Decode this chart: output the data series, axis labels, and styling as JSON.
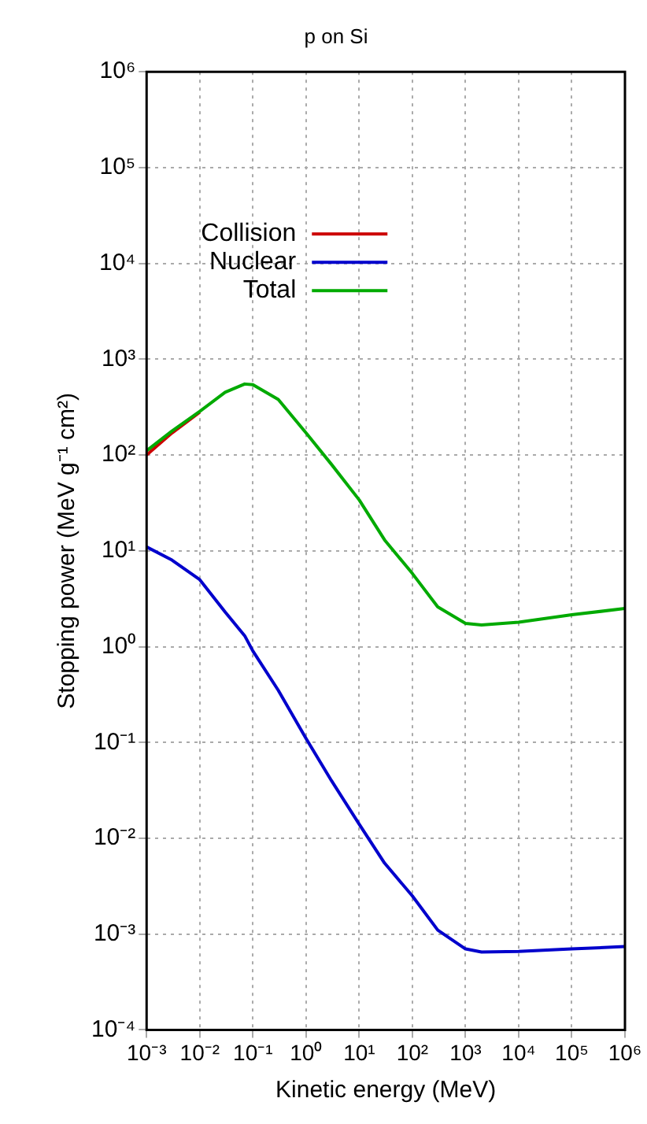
{
  "chart_data": {
    "type": "line",
    "title": "p on Si",
    "xlabel": "Kinetic energy (MeV)",
    "ylabel": "Stopping power (MeV g⁻¹ cm²)",
    "x": [
      0.001,
      0.003,
      0.01,
      0.03,
      0.07,
      0.1,
      0.3,
      1,
      3,
      10,
      30,
      100,
      300,
      1000,
      2000,
      10000,
      100000,
      1000000
    ],
    "series": [
      {
        "name": "Collision",
        "color": "#cc0000",
        "values": [
          100,
          170,
          280,
          null,
          null,
          null,
          null,
          null,
          null,
          null,
          null,
          null,
          null,
          null,
          null,
          null,
          null,
          null
        ]
      },
      {
        "name": "Nuclear",
        "color": "#0000cc",
        "values": [
          11,
          8,
          5,
          2.3,
          1.3,
          0.9,
          0.35,
          0.11,
          0.04,
          0.014,
          0.0055,
          0.0025,
          0.0011,
          0.0007,
          0.00065,
          0.00066,
          0.0007,
          0.00074
        ]
      },
      {
        "name": "Total",
        "color": "#00aa00",
        "values": [
          111,
          178,
          285,
          452,
          551,
          541,
          380,
          170,
          80,
          34,
          13,
          5.8,
          2.6,
          1.75,
          1.68,
          1.8,
          2.15,
          2.5
        ]
      }
    ],
    "xlim": [
      0.001,
      1000000
    ],
    "ylim": [
      0.0001,
      1000000
    ],
    "xticks": [
      {
        "value": 0.001,
        "label": "10⁻³"
      },
      {
        "value": 0.01,
        "label": "10⁻²"
      },
      {
        "value": 0.1,
        "label": "10⁻¹"
      },
      {
        "value": 1,
        "label": "10⁰"
      },
      {
        "value": 10,
        "label": "10¹"
      },
      {
        "value": 100,
        "label": "10²"
      },
      {
        "value": 1000,
        "label": "10³"
      },
      {
        "value": 10000,
        "label": "10⁴"
      },
      {
        "value": 100000,
        "label": "10⁵"
      },
      {
        "value": 1000000,
        "label": "10⁶"
      }
    ],
    "yticks": [
      {
        "value": 0.0001,
        "label": "10⁻⁴"
      },
      {
        "value": 0.001,
        "label": "10⁻³"
      },
      {
        "value": 0.01,
        "label": "10⁻²"
      },
      {
        "value": 0.1,
        "label": "10⁻¹"
      },
      {
        "value": 1,
        "label": "10⁰"
      },
      {
        "value": 10,
        "label": "10¹"
      },
      {
        "value": 100,
        "label": "10²"
      },
      {
        "value": 1000,
        "label": "10³"
      },
      {
        "value": 10000,
        "label": "10⁴"
      },
      {
        "value": 100000,
        "label": "10⁵"
      },
      {
        "value": 1000000,
        "label": "10⁶"
      }
    ],
    "log": "xy",
    "grid": true,
    "legend": "top left"
  }
}
